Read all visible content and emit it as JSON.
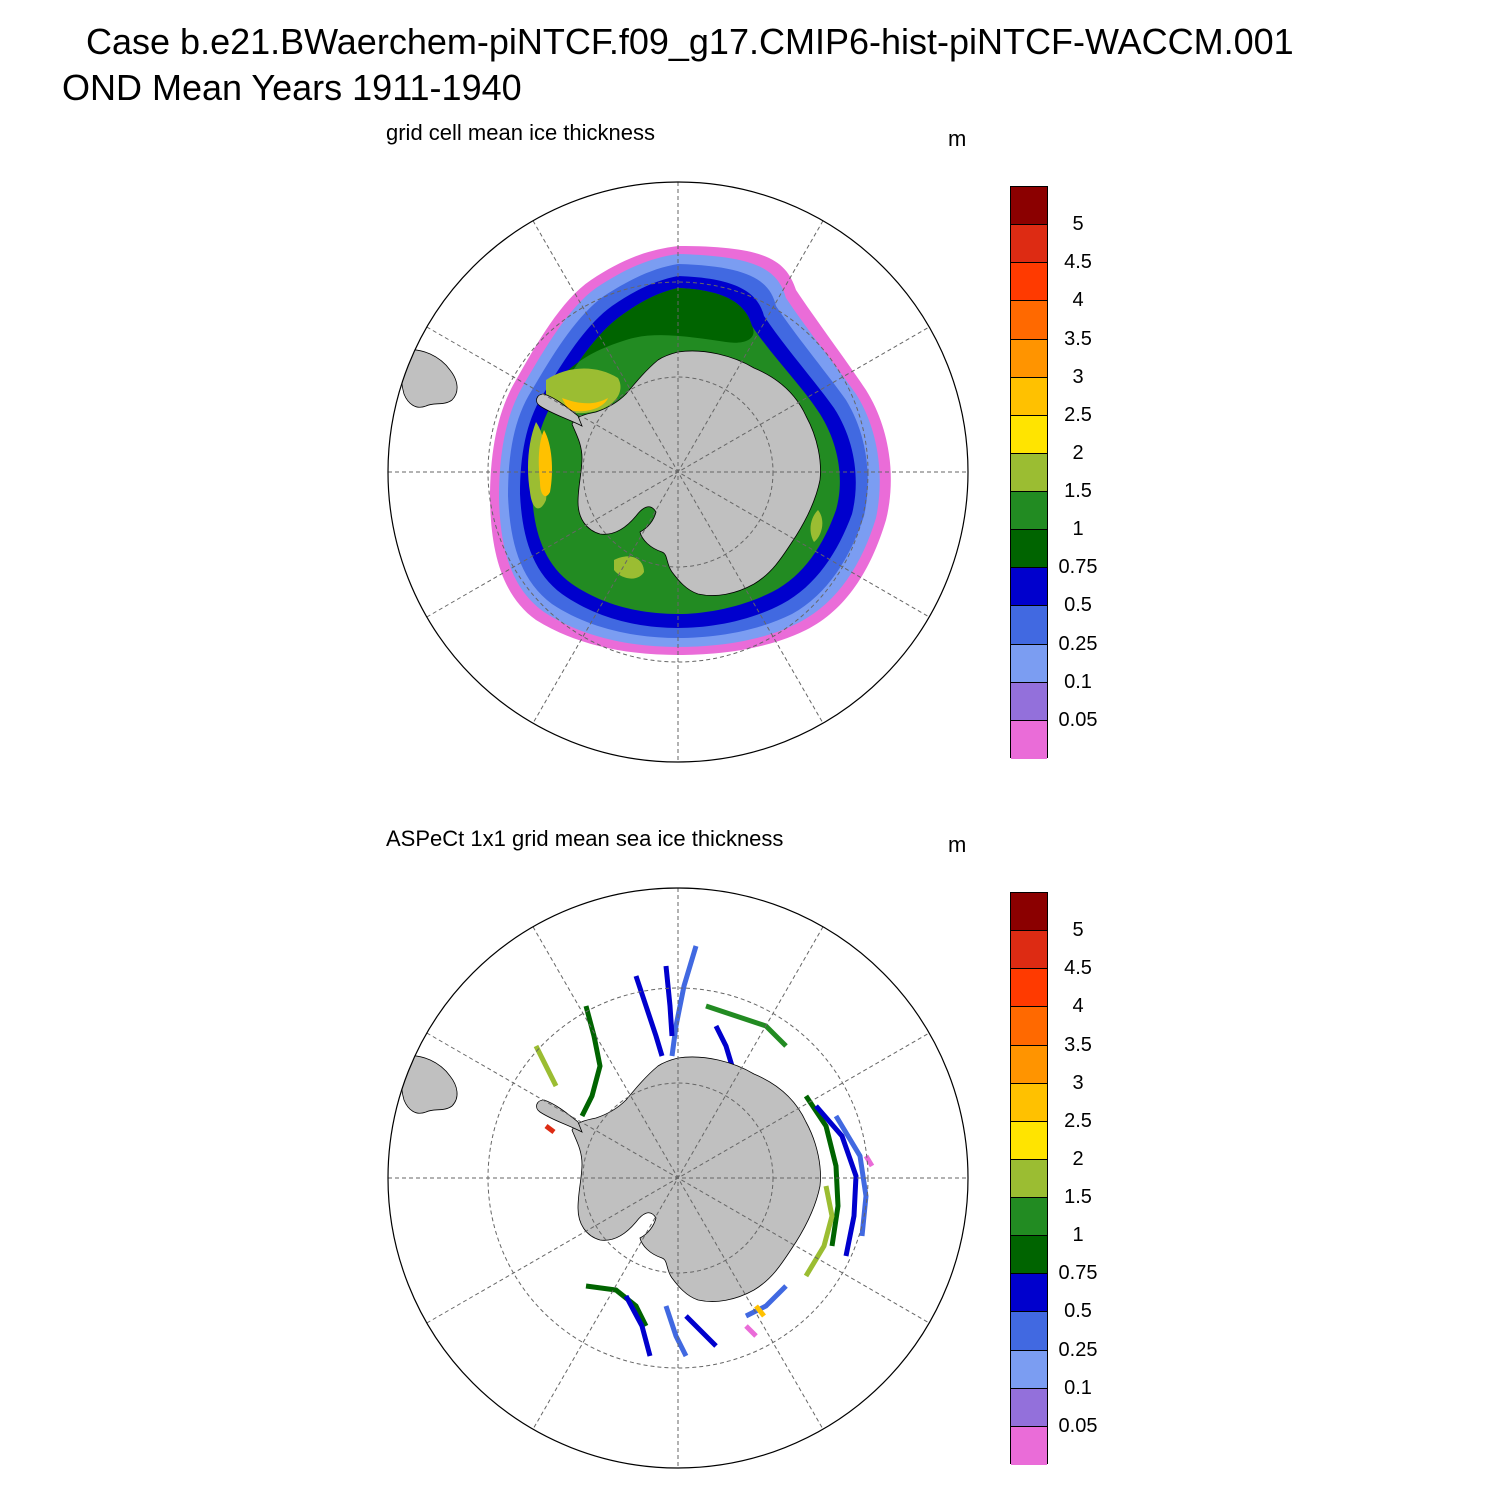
{
  "header": {
    "case_title": "Case b.e21.BWaerchem-piNTCF.f09_g17.CMIP6-hist-piNTCF-WACCM.001",
    "season_title": "OND Mean   Years 1911-1940"
  },
  "panels": [
    {
      "id": "model",
      "title": "grid cell mean ice thickness",
      "units": "m"
    },
    {
      "id": "obs",
      "title": "ASPeCt 1x1 grid mean sea ice thickness",
      "units": "m"
    }
  ],
  "colorbar": {
    "labels": [
      "5",
      "4.5",
      "4",
      "3.5",
      "3",
      "2.5",
      "2",
      "1.5",
      "1",
      "0.75",
      "0.5",
      "0.25",
      "0.1",
      "0.05"
    ],
    "colors": [
      "#8b0000",
      "#dd2b13",
      "#ff3a00",
      "#ff6900",
      "#ff9400",
      "#ffc100",
      "#ffe400",
      "#9bbd32",
      "#228b22",
      "#006400",
      "#0000cd",
      "#4169e1",
      "#7b9df2",
      "#9370db",
      "#ea6cd8"
    ]
  },
  "colors": {
    "land": "#c0c0c0",
    "grid": "#666666"
  }
}
